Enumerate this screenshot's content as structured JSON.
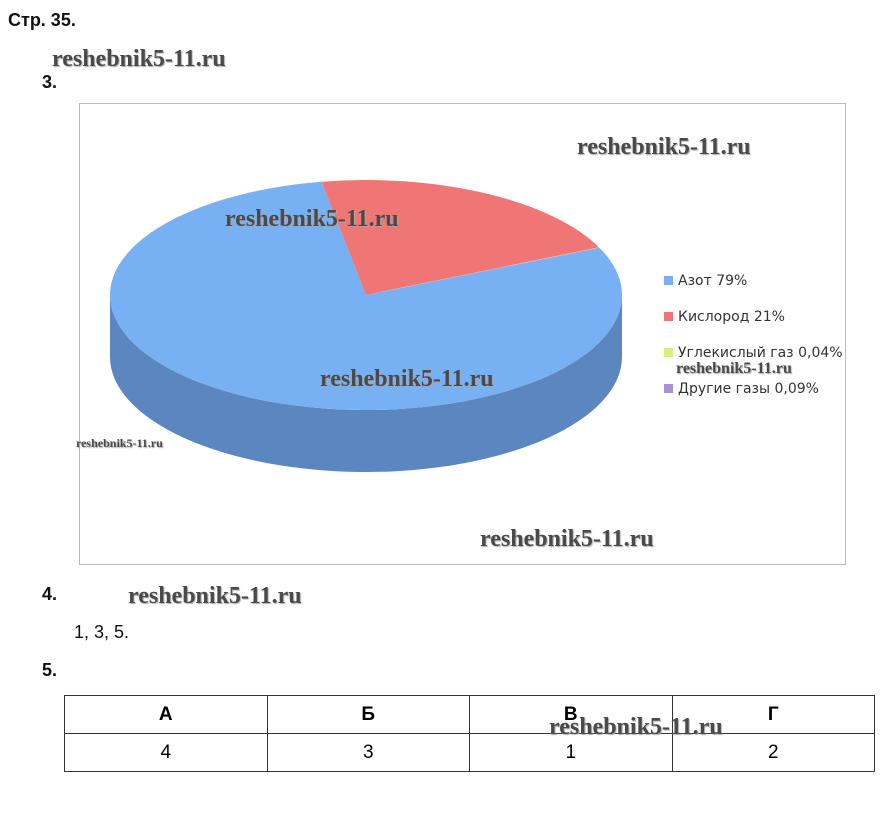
{
  "header": {
    "page": "Стр. 35."
  },
  "task3": {
    "number": "3."
  },
  "chart_data": {
    "type": "pie",
    "categories": [
      "Азот 79%",
      "Кислород 21%",
      "Углекислый газ 0,04%",
      "Другие газы 0,09%"
    ],
    "values": [
      79,
      21,
      0.04,
      0.09
    ],
    "colors": [
      "#77b0f3",
      "#f07676",
      "#d6f07c",
      "#a98fd8"
    ],
    "legend": "right"
  },
  "task4": {
    "number": "4.",
    "answer": "1, 3, 5."
  },
  "task5": {
    "number": "5.",
    "table": {
      "header": [
        "А",
        "Б",
        "В",
        "Г"
      ],
      "rows": [
        [
          "4",
          "3",
          "1",
          "2"
        ]
      ]
    }
  },
  "watermarks": [
    "reshebnik5-11.ru",
    "reshebnik5-11.ru",
    "reshebnik5-11.ru",
    "reshebnik5-11.ru",
    "reshebnik5-11.ru",
    "reshebnik5-11.ru",
    "reshebnik5-11.ru",
    "reshebnik5-11.ru",
    "reshebnik5-11.ru"
  ]
}
